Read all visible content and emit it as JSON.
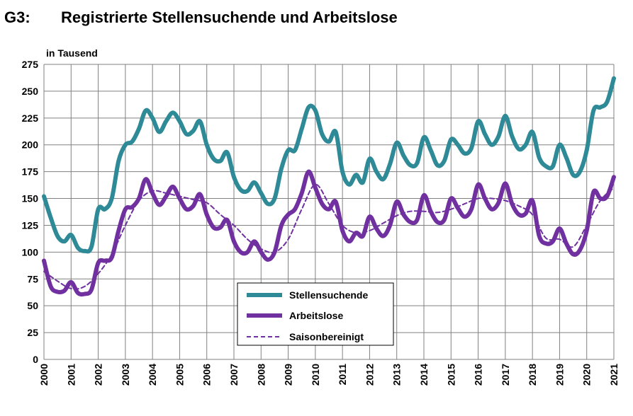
{
  "header": {
    "code": "G3:",
    "title": "Registrierte Stellensuchende und Arbeitslose"
  },
  "colors": {
    "stellensuchende": "#2e8a97",
    "arbeitslose": "#7030a0",
    "saison": "#7030a0",
    "grid": "#808080"
  },
  "chart_data": {
    "type": "line",
    "ylabel": "in Tausend",
    "ylim": [
      0,
      275
    ],
    "yticks": [
      0,
      25,
      50,
      75,
      100,
      125,
      150,
      175,
      200,
      225,
      250,
      275
    ],
    "xlim": [
      2000,
      2021
    ],
    "xticks": [
      "2000",
      "2001",
      "2002",
      "2003",
      "2004",
      "2005",
      "2006",
      "2007",
      "2008",
      "2009",
      "2010",
      "2011",
      "2012",
      "2013",
      "2014",
      "2015",
      "2016",
      "2017",
      "2018",
      "2019",
      "2020",
      "2021"
    ],
    "grid": true,
    "legend": "center-bottom",
    "series": [
      {
        "name": "Stellensuchende",
        "style": "solid-thick",
        "x": [
          2000.0,
          2000.25,
          2000.5,
          2000.75,
          2001.0,
          2001.25,
          2001.5,
          2001.75,
          2002.0,
          2002.25,
          2002.5,
          2002.75,
          2003.0,
          2003.25,
          2003.5,
          2003.75,
          2004.0,
          2004.25,
          2004.5,
          2004.75,
          2005.0,
          2005.25,
          2005.5,
          2005.75,
          2006.0,
          2006.25,
          2006.5,
          2006.75,
          2007.0,
          2007.25,
          2007.5,
          2007.75,
          2008.0,
          2008.25,
          2008.5,
          2008.75,
          2009.0,
          2009.25,
          2009.5,
          2009.75,
          2010.0,
          2010.25,
          2010.5,
          2010.75,
          2011.0,
          2011.25,
          2011.5,
          2011.75,
          2012.0,
          2012.25,
          2012.5,
          2012.75,
          2013.0,
          2013.25,
          2013.5,
          2013.75,
          2014.0,
          2014.25,
          2014.5,
          2014.75,
          2015.0,
          2015.25,
          2015.5,
          2015.75,
          2016.0,
          2016.25,
          2016.5,
          2016.75,
          2017.0,
          2017.25,
          2017.5,
          2017.75,
          2018.0,
          2018.25,
          2018.5,
          2018.75,
          2019.0,
          2019.25,
          2019.5,
          2019.75,
          2020.0,
          2020.25,
          2020.5,
          2020.75,
          2021.0
        ],
        "values": [
          152,
          132,
          115,
          110,
          116,
          104,
          101,
          105,
          140,
          140,
          150,
          185,
          200,
          203,
          215,
          232,
          225,
          212,
          222,
          230,
          222,
          210,
          213,
          222,
          200,
          187,
          185,
          193,
          170,
          158,
          157,
          165,
          155,
          145,
          150,
          178,
          195,
          195,
          215,
          235,
          232,
          210,
          203,
          212,
          175,
          163,
          172,
          165,
          187,
          175,
          168,
          182,
          202,
          190,
          181,
          183,
          207,
          195,
          181,
          185,
          205,
          200,
          192,
          197,
          222,
          210,
          200,
          208,
          227,
          208,
          196,
          200,
          212,
          188,
          180,
          180,
          200,
          188,
          172,
          175,
          195,
          232,
          235,
          240,
          262
        ]
      },
      {
        "name": "Arbeitslose",
        "style": "solid-thick",
        "x": [
          2000.0,
          2000.25,
          2000.5,
          2000.75,
          2001.0,
          2001.25,
          2001.5,
          2001.75,
          2002.0,
          2002.25,
          2002.5,
          2002.75,
          2003.0,
          2003.25,
          2003.5,
          2003.75,
          2004.0,
          2004.25,
          2004.5,
          2004.75,
          2005.0,
          2005.25,
          2005.5,
          2005.75,
          2006.0,
          2006.25,
          2006.5,
          2006.75,
          2007.0,
          2007.25,
          2007.5,
          2007.75,
          2008.0,
          2008.25,
          2008.5,
          2008.75,
          2009.0,
          2009.25,
          2009.5,
          2009.75,
          2010.0,
          2010.25,
          2010.5,
          2010.75,
          2011.0,
          2011.25,
          2011.5,
          2011.75,
          2012.0,
          2012.25,
          2012.5,
          2012.75,
          2013.0,
          2013.25,
          2013.5,
          2013.75,
          2014.0,
          2014.25,
          2014.5,
          2014.75,
          2015.0,
          2015.25,
          2015.5,
          2015.75,
          2016.0,
          2016.25,
          2016.5,
          2016.75,
          2017.0,
          2017.25,
          2017.5,
          2017.75,
          2018.0,
          2018.25,
          2018.5,
          2018.75,
          2019.0,
          2019.25,
          2019.5,
          2019.75,
          2020.0,
          2020.25,
          2020.5,
          2020.75,
          2021.0
        ],
        "values": [
          92,
          68,
          63,
          64,
          72,
          62,
          61,
          65,
          90,
          92,
          95,
          120,
          140,
          142,
          150,
          168,
          155,
          144,
          152,
          161,
          150,
          140,
          143,
          154,
          135,
          123,
          123,
          130,
          110,
          100,
          100,
          110,
          100,
          93,
          100,
          125,
          135,
          140,
          155,
          175,
          160,
          145,
          140,
          147,
          120,
          110,
          118,
          115,
          133,
          122,
          115,
          125,
          147,
          135,
          128,
          130,
          153,
          138,
          128,
          130,
          150,
          141,
          133,
          140,
          163,
          150,
          140,
          146,
          164,
          145,
          135,
          136,
          148,
          115,
          108,
          110,
          122,
          108,
          98,
          102,
          120,
          156,
          150,
          152,
          170
        ]
      },
      {
        "name": "Saisonbereinigt",
        "style": "dashed",
        "x": [
          2000.0,
          2000.5,
          2001.0,
          2001.5,
          2002.0,
          2002.5,
          2003.0,
          2003.5,
          2004.0,
          2004.5,
          2005.0,
          2005.5,
          2006.0,
          2006.5,
          2007.0,
          2007.5,
          2008.0,
          2008.5,
          2009.0,
          2009.5,
          2010.0,
          2010.5,
          2011.0,
          2011.5,
          2012.0,
          2012.5,
          2013.0,
          2013.5,
          2014.0,
          2014.5,
          2015.0,
          2015.5,
          2016.0,
          2016.5,
          2017.0,
          2017.5,
          2018.0,
          2018.5,
          2019.0,
          2019.5,
          2020.0,
          2020.5,
          2021.0
        ],
        "values": [
          82,
          73,
          66,
          68,
          80,
          98,
          125,
          148,
          157,
          155,
          152,
          149,
          146,
          135,
          125,
          112,
          103,
          100,
          112,
          140,
          163,
          145,
          125,
          118,
          120,
          127,
          134,
          138,
          138,
          137,
          140,
          145,
          150,
          150,
          148,
          143,
          135,
          113,
          112,
          105,
          125,
          148,
          160
        ]
      }
    ]
  },
  "legend": {
    "items": [
      {
        "label": "Stellensuchende"
      },
      {
        "label": "Arbeitslose"
      },
      {
        "label": "Saisonbereinigt"
      }
    ]
  }
}
